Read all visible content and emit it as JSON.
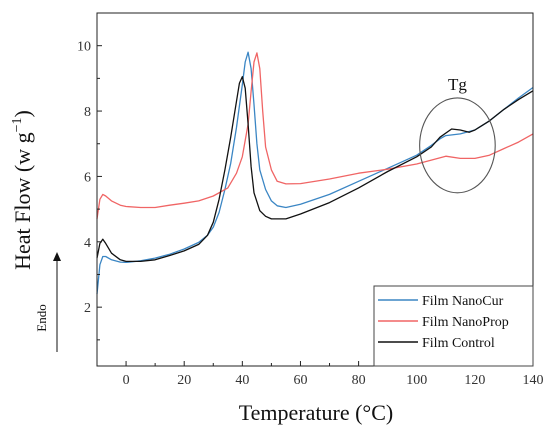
{
  "chart_data": {
    "type": "line",
    "xlabel": "Temperature (°C)",
    "ylabel_main": "Heat Flow (w g",
    "ylabel_sup": "−1",
    "ylabel_close": ")",
    "xlim": [
      -10,
      140
    ],
    "ylim": [
      0.2,
      11
    ],
    "xticks": [
      0,
      20,
      40,
      60,
      80,
      100,
      120,
      140
    ],
    "yticks": [
      2,
      4,
      6,
      8,
      10
    ],
    "grid": false,
    "legend_position": "bottom-right",
    "annotation": {
      "text": "Tg",
      "x": 114,
      "y": 6.95,
      "rx": 13,
      "ry": 1.45
    },
    "endo_label": "Endo",
    "series": [
      {
        "name": "Film NanoCur",
        "color": "#3b86c4",
        "points": [
          [
            -10,
            2.4
          ],
          [
            -9,
            3.3
          ],
          [
            -8,
            3.55
          ],
          [
            -7,
            3.55
          ],
          [
            -5,
            3.45
          ],
          [
            -2,
            3.38
          ],
          [
            0,
            3.37
          ],
          [
            5,
            3.42
          ],
          [
            10,
            3.5
          ],
          [
            15,
            3.62
          ],
          [
            20,
            3.78
          ],
          [
            25,
            3.98
          ],
          [
            28,
            4.2
          ],
          [
            30,
            4.45
          ],
          [
            32,
            4.9
          ],
          [
            34,
            5.6
          ],
          [
            36,
            6.4
          ],
          [
            38,
            7.5
          ],
          [
            40,
            8.8
          ],
          [
            41,
            9.5
          ],
          [
            42,
            9.8
          ],
          [
            43,
            9.3
          ],
          [
            44,
            8.2
          ],
          [
            45,
            7.0
          ],
          [
            46,
            6.2
          ],
          [
            48,
            5.6
          ],
          [
            50,
            5.25
          ],
          [
            52,
            5.1
          ],
          [
            55,
            5.05
          ],
          [
            60,
            5.15
          ],
          [
            70,
            5.45
          ],
          [
            80,
            5.85
          ],
          [
            90,
            6.25
          ],
          [
            100,
            6.65
          ],
          [
            105,
            6.95
          ],
          [
            108,
            7.15
          ],
          [
            110,
            7.25
          ],
          [
            115,
            7.3
          ],
          [
            120,
            7.42
          ],
          [
            125,
            7.7
          ],
          [
            130,
            8.05
          ],
          [
            135,
            8.4
          ],
          [
            140,
            8.72
          ]
        ]
      },
      {
        "name": "Film NanoProp",
        "color": "#f06565",
        "points": [
          [
            -10,
            4.7
          ],
          [
            -9,
            5.3
          ],
          [
            -8,
            5.45
          ],
          [
            -7,
            5.4
          ],
          [
            -5,
            5.25
          ],
          [
            -2,
            5.12
          ],
          [
            0,
            5.08
          ],
          [
            5,
            5.05
          ],
          [
            10,
            5.05
          ],
          [
            15,
            5.12
          ],
          [
            20,
            5.18
          ],
          [
            25,
            5.25
          ],
          [
            30,
            5.4
          ],
          [
            35,
            5.65
          ],
          [
            38,
            6.1
          ],
          [
            40,
            6.6
          ],
          [
            42,
            7.6
          ],
          [
            43,
            8.6
          ],
          [
            44,
            9.5
          ],
          [
            45,
            9.78
          ],
          [
            46,
            9.3
          ],
          [
            47,
            8.0
          ],
          [
            48,
            6.9
          ],
          [
            50,
            6.2
          ],
          [
            52,
            5.85
          ],
          [
            55,
            5.77
          ],
          [
            60,
            5.78
          ],
          [
            70,
            5.92
          ],
          [
            80,
            6.1
          ],
          [
            90,
            6.22
          ],
          [
            100,
            6.38
          ],
          [
            105,
            6.5
          ],
          [
            110,
            6.62
          ],
          [
            115,
            6.55
          ],
          [
            120,
            6.55
          ],
          [
            125,
            6.65
          ],
          [
            130,
            6.85
          ],
          [
            135,
            7.05
          ],
          [
            140,
            7.3
          ]
        ]
      },
      {
        "name": "Film Control",
        "color": "#111111",
        "points": [
          [
            -10,
            3.5
          ],
          [
            -9,
            3.95
          ],
          [
            -8,
            4.08
          ],
          [
            -7,
            3.95
          ],
          [
            -5,
            3.65
          ],
          [
            -2,
            3.45
          ],
          [
            0,
            3.4
          ],
          [
            5,
            3.4
          ],
          [
            10,
            3.45
          ],
          [
            15,
            3.58
          ],
          [
            20,
            3.72
          ],
          [
            25,
            3.92
          ],
          [
            28,
            4.2
          ],
          [
            30,
            4.6
          ],
          [
            32,
            5.3
          ],
          [
            34,
            6.2
          ],
          [
            36,
            7.2
          ],
          [
            38,
            8.3
          ],
          [
            39,
            8.85
          ],
          [
            40,
            9.05
          ],
          [
            41,
            8.7
          ],
          [
            42,
            7.6
          ],
          [
            43,
            6.3
          ],
          [
            44,
            5.5
          ],
          [
            46,
            4.95
          ],
          [
            48,
            4.78
          ],
          [
            50,
            4.7
          ],
          [
            55,
            4.7
          ],
          [
            60,
            4.85
          ],
          [
            70,
            5.2
          ],
          [
            80,
            5.65
          ],
          [
            90,
            6.15
          ],
          [
            100,
            6.6
          ],
          [
            105,
            6.9
          ],
          [
            108,
            7.2
          ],
          [
            112,
            7.45
          ],
          [
            115,
            7.42
          ],
          [
            118,
            7.35
          ],
          [
            120,
            7.42
          ],
          [
            125,
            7.7
          ],
          [
            130,
            8.05
          ],
          [
            135,
            8.35
          ],
          [
            140,
            8.62
          ]
        ]
      }
    ]
  }
}
